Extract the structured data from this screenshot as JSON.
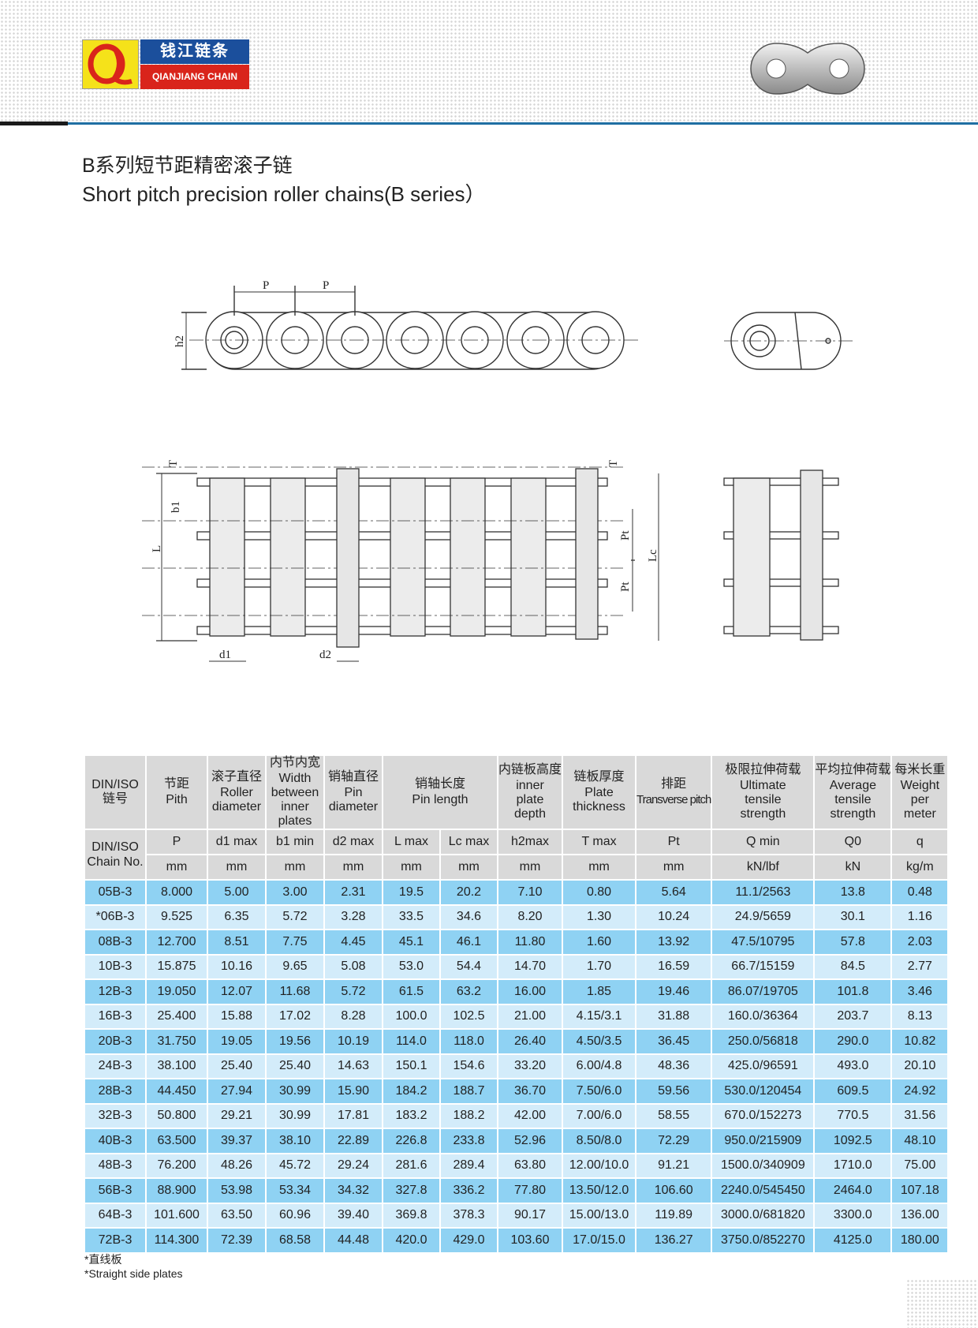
{
  "brand": {
    "name_cn": "钱江链条",
    "name_en": "QIANJIANG CHAIN",
    "logo_letters": "QJ",
    "colors": {
      "yellow": "#f5e21a",
      "blue": "#1b4f9c",
      "red": "#d9241b"
    }
  },
  "title": {
    "cn": "B系列短节距精密滚子链",
    "en": "Short pitch precision roller chains(B series）"
  },
  "drawing_labels": {
    "pitch": "P",
    "h2": "h2",
    "T": "T",
    "b1": "b1",
    "L": "L",
    "Pt": "Pt",
    "Lc": "Lc",
    "d1": "d1",
    "d2": "d2"
  },
  "table": {
    "header_cn": [
      "DIN/ISO",
      "节距",
      "滚子直径",
      "内节内宽",
      "销轴直径",
      "销轴长度",
      "内链板高度",
      "链板厚度",
      "排距",
      "极限拉伸荷载",
      "平均拉伸荷载",
      "每米长重"
    ],
    "header_cn_first_line2": "链号",
    "header_en": [
      "",
      "Pith",
      "Roller diameter",
      "Width between inner plates",
      "Pin diameter",
      "Pin length",
      "inner plate depth",
      "Plate thickness",
      "Transverse pitch",
      "Ultimate tensile strength",
      "Average tensile strength",
      "Weight per meter"
    ],
    "chain_no_label": "DIN/ISO Chain No.",
    "symbols": [
      "P",
      "d1 max",
      "b1 min",
      "d2 max",
      "L max",
      "Lc max",
      "h2max",
      "T max",
      "Pt",
      "Q min",
      "Q0",
      "q"
    ],
    "units": [
      "mm",
      "mm",
      "mm",
      "mm",
      "mm",
      "mm",
      "mm",
      "mm",
      "mm",
      "kN/lbf",
      "kN",
      "kg/m"
    ],
    "rows": [
      [
        "05B-3",
        "8.000",
        "5.00",
        "3.00",
        "2.31",
        "19.5",
        "20.2",
        "7.10",
        "0.80",
        "5.64",
        "11.1/2563",
        "13.8",
        "0.48"
      ],
      [
        "*06B-3",
        "9.525",
        "6.35",
        "5.72",
        "3.28",
        "33.5",
        "34.6",
        "8.20",
        "1.30",
        "10.24",
        "24.9/5659",
        "30.1",
        "1.16"
      ],
      [
        "08B-3",
        "12.700",
        "8.51",
        "7.75",
        "4.45",
        "45.1",
        "46.1",
        "11.80",
        "1.60",
        "13.92",
        "47.5/10795",
        "57.8",
        "2.03"
      ],
      [
        "10B-3",
        "15.875",
        "10.16",
        "9.65",
        "5.08",
        "53.0",
        "54.4",
        "14.70",
        "1.70",
        "16.59",
        "66.7/15159",
        "84.5",
        "2.77"
      ],
      [
        "12B-3",
        "19.050",
        "12.07",
        "11.68",
        "5.72",
        "61.5",
        "63.2",
        "16.00",
        "1.85",
        "19.46",
        "86.07/19705",
        "101.8",
        "3.46"
      ],
      [
        "16B-3",
        "25.400",
        "15.88",
        "17.02",
        "8.28",
        "100.0",
        "102.5",
        "21.00",
        "4.15/3.1",
        "31.88",
        "160.0/36364",
        "203.7",
        "8.13"
      ],
      [
        "20B-3",
        "31.750",
        "19.05",
        "19.56",
        "10.19",
        "114.0",
        "118.0",
        "26.40",
        "4.50/3.5",
        "36.45",
        "250.0/56818",
        "290.0",
        "10.82"
      ],
      [
        "24B-3",
        "38.100",
        "25.40",
        "25.40",
        "14.63",
        "150.1",
        "154.6",
        "33.20",
        "6.00/4.8",
        "48.36",
        "425.0/96591",
        "493.0",
        "20.10"
      ],
      [
        "28B-3",
        "44.450",
        "27.94",
        "30.99",
        "15.90",
        "184.2",
        "188.7",
        "36.70",
        "7.50/6.0",
        "59.56",
        "530.0/120454",
        "609.5",
        "24.92"
      ],
      [
        "32B-3",
        "50.800",
        "29.21",
        "30.99",
        "17.81",
        "183.2",
        "188.2",
        "42.00",
        "7.00/6.0",
        "58.55",
        "670.0/152273",
        "770.5",
        "31.56"
      ],
      [
        "40B-3",
        "63.500",
        "39.37",
        "38.10",
        "22.89",
        "226.8",
        "233.8",
        "52.96",
        "8.50/8.0",
        "72.29",
        "950.0/215909",
        "1092.5",
        "48.10"
      ],
      [
        "48B-3",
        "76.200",
        "48.26",
        "45.72",
        "29.24",
        "281.6",
        "289.4",
        "63.80",
        "12.00/10.0",
        "91.21",
        "1500.0/340909",
        "1710.0",
        "75.00"
      ],
      [
        "56B-3",
        "88.900",
        "53.98",
        "53.34",
        "34.32",
        "327.8",
        "336.2",
        "77.80",
        "13.50/12.0",
        "106.60",
        "2240.0/545450",
        "2464.0",
        "107.18"
      ],
      [
        "64B-3",
        "101.600",
        "63.50",
        "60.96",
        "39.40",
        "369.8",
        "378.3",
        "90.17",
        "15.00/13.0",
        "119.89",
        "3000.0/681820",
        "3300.0",
        "136.00"
      ],
      [
        "72B-3",
        "114.300",
        "72.39",
        "68.58",
        "44.48",
        "420.0",
        "429.0",
        "103.60",
        "17.0/15.0",
        "136.27",
        "3750.0/852270",
        "4125.0",
        "180.00"
      ]
    ]
  },
  "notes": {
    "cn": "*直线板",
    "en": "*Straight side plates"
  },
  "colors": {
    "header_bg": "#d9d9d9",
    "row_dark": "#8fd2f3",
    "row_light": "#d3ecfa",
    "rule_blue": "#1f6fa3"
  }
}
